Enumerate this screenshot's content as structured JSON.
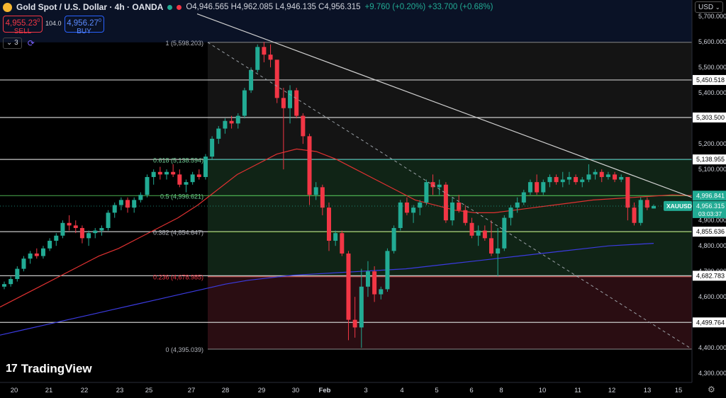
{
  "header": {
    "title": "Gold Spot / U.S. Dollar · 4h · OANDA",
    "ohlc_text": "O4,946.565 H4,962.085 L4,946.135 C4,956.315",
    "change_text": "+9.760 (+0.20%) +33.700 (+0.68%)"
  },
  "trade": {
    "sell_price": "4,955.23",
    "sell_sup": "0",
    "sell_label": "SELL",
    "spread": "104.0",
    "buy_price": "4,956.27",
    "buy_sup": "0",
    "buy_label": "BUY"
  },
  "indicators": {
    "count": "3"
  },
  "currency": "USD",
  "branding": "TradingView",
  "colors": {
    "up": "#22ab94",
    "down": "#f23645",
    "ema_fast": "#e03131",
    "ema_slow": "#3b3be0",
    "fib_top_band": "#141414",
    "fib_mid_band": "#102416",
    "fib_low_band": "#2a0d12",
    "sky": "#0a1226"
  },
  "chart_data": {
    "type": "candlestick",
    "symbol": "XAUUSD",
    "timeframe": "4h",
    "ylim": [
      4270,
      5760
    ],
    "y_ticks": [
      4300,
      4400,
      4500,
      4600,
      4700,
      4800,
      4900,
      5000,
      5100,
      5200,
      5300,
      5400,
      5500,
      5600,
      5700
    ],
    "y_tick_labels": [
      "4,300.000",
      "4,400.000",
      "",
      "4,600.000",
      "4,700.000",
      "4,800.000",
      "4,900.000",
      "",
      "5,100.000",
      "5,200.000",
      "",
      "5,400.000",
      "5,500.000",
      "5,600.000",
      "5,700.000"
    ],
    "x_labels": [
      "20",
      "21",
      "22",
      "23",
      "25",
      "27",
      "28",
      "29",
      "30",
      "Feb",
      "3",
      "4",
      "5",
      "6",
      "8",
      "10",
      "11",
      "12",
      "13",
      "15"
    ],
    "price_labels": [
      {
        "value": 5450.518,
        "text": "5,450.518"
      },
      {
        "value": 5303.5,
        "text": "5,303.500"
      },
      {
        "value": 5138.955,
        "text": "5,138.955"
      },
      {
        "value": 4996.841,
        "text": "4,996.841"
      },
      {
        "value": 4855.636,
        "text": "4,855.636"
      },
      {
        "value": 4682.783,
        "text": "4,682.783"
      },
      {
        "value": 4499.764,
        "text": "4,499.764"
      }
    ],
    "last_price": {
      "symbol": "XAUUSD",
      "text": "4,956.315",
      "countdown": "03:03:37",
      "value": 4956.315
    },
    "fib_levels": [
      {
        "ratio": "1",
        "value": 5598.203,
        "text": "1 (5,598.203)"
      },
      {
        "ratio": "0.618",
        "value": 5138.594,
        "text": "0.618 (5,138.594)"
      },
      {
        "ratio": "0.5",
        "value": 4996.621,
        "text": "0.5 (4,996.621)"
      },
      {
        "ratio": "0.382",
        "value": 4854.647,
        "text": "0.382 (4,854.647)"
      },
      {
        "ratio": "0.236",
        "value": 4678.985,
        "text": "0.236 (4,678.985)"
      },
      {
        "ratio": "0",
        "value": 4395.039,
        "text": "0 (4,395.039)"
      }
    ],
    "candles": [
      [
        4640,
        4660,
        4630,
        4650
      ],
      [
        4650,
        4680,
        4640,
        4670
      ],
      [
        4670,
        4720,
        4660,
        4710
      ],
      [
        4710,
        4760,
        4700,
        4750
      ],
      [
        4750,
        4780,
        4730,
        4770
      ],
      [
        4770,
        4790,
        4750,
        4760
      ],
      [
        4760,
        4800,
        4750,
        4790
      ],
      [
        4790,
        4830,
        4780,
        4820
      ],
      [
        4820,
        4850,
        4800,
        4840
      ],
      [
        4840,
        4900,
        4830,
        4890
      ],
      [
        4890,
        4920,
        4860,
        4880
      ],
      [
        4880,
        4900,
        4850,
        4870
      ],
      [
        4870,
        4880,
        4810,
        4830
      ],
      [
        4830,
        4860,
        4800,
        4850
      ],
      [
        4850,
        4870,
        4830,
        4860
      ],
      [
        4860,
        4880,
        4840,
        4870
      ],
      [
        4870,
        4940,
        4860,
        4930
      ],
      [
        4930,
        4970,
        4910,
        4960
      ],
      [
        4960,
        4990,
        4940,
        4980
      ],
      [
        4980,
        4990,
        4930,
        4950
      ],
      [
        4950,
        4990,
        4930,
        4980
      ],
      [
        4980,
        5010,
        4970,
        5000
      ],
      [
        5000,
        5080,
        4990,
        5070
      ],
      [
        5070,
        5100,
        5040,
        5090
      ],
      [
        5090,
        5110,
        5060,
        5080
      ],
      [
        5080,
        5100,
        5060,
        5090
      ],
      [
        5090,
        5120,
        5070,
        5080
      ],
      [
        5080,
        5100,
        5030,
        5040
      ],
      [
        5040,
        5060,
        5010,
        5050
      ],
      [
        5050,
        5090,
        5040,
        5080
      ],
      [
        5080,
        5100,
        5060,
        5070
      ],
      [
        5070,
        5160,
        5060,
        5150
      ],
      [
        5150,
        5230,
        5140,
        5220
      ],
      [
        5220,
        5270,
        5200,
        5260
      ],
      [
        5260,
        5300,
        5240,
        5290
      ],
      [
        5290,
        5310,
        5260,
        5280
      ],
      [
        5280,
        5320,
        5260,
        5310
      ],
      [
        5310,
        5420,
        5300,
        5410
      ],
      [
        5410,
        5500,
        5400,
        5490
      ],
      [
        5490,
        5590,
        5480,
        5580
      ],
      [
        5580,
        5600,
        5520,
        5550
      ],
      [
        5550,
        5590,
        5500,
        5530
      ],
      [
        5530,
        5520,
        5360,
        5380
      ],
      [
        5380,
        5420,
        5100,
        5340
      ],
      [
        5340,
        5430,
        5280,
        5410
      ],
      [
        5410,
        5420,
        5300,
        5310
      ],
      [
        5310,
        5320,
        5200,
        5230
      ],
      [
        5230,
        5240,
        4960,
        5000
      ],
      [
        5000,
        5050,
        4980,
        5030
      ],
      [
        5030,
        5040,
        4920,
        4950
      ],
      [
        4950,
        4970,
        4780,
        4820
      ],
      [
        4820,
        4860,
        4800,
        4850
      ],
      [
        4850,
        4860,
        4760,
        4770
      ],
      [
        4770,
        4780,
        4430,
        4510
      ],
      [
        4510,
        4600,
        4440,
        4480
      ],
      [
        4480,
        4710,
        4400,
        4640
      ],
      [
        4640,
        4740,
        4600,
        4700
      ],
      [
        4700,
        4720,
        4580,
        4610
      ],
      [
        4610,
        4640,
        4590,
        4630
      ],
      [
        4630,
        4790,
        4620,
        4780
      ],
      [
        4780,
        4880,
        4770,
        4870
      ],
      [
        4870,
        4980,
        4860,
        4970
      ],
      [
        4970,
        4990,
        4920,
        4930
      ],
      [
        4930,
        4960,
        4890,
        4950
      ],
      [
        4950,
        4980,
        4920,
        4970
      ],
      [
        4970,
        5060,
        4960,
        5050
      ],
      [
        5050,
        5080,
        5000,
        5030
      ],
      [
        5030,
        5060,
        5000,
        5040
      ],
      [
        5040,
        5050,
        4890,
        4900
      ],
      [
        4900,
        4990,
        4880,
        4970
      ],
      [
        4970,
        5000,
        4930,
        4940
      ],
      [
        4940,
        4960,
        4880,
        4890
      ],
      [
        4890,
        4910,
        4830,
        4840
      ],
      [
        4840,
        4880,
        4800,
        4860
      ],
      [
        4860,
        4880,
        4820,
        4830
      ],
      [
        4830,
        4900,
        4760,
        4770
      ],
      [
        4770,
        4870,
        4680,
        4790
      ],
      [
        4790,
        4920,
        4780,
        4910
      ],
      [
        4910,
        4960,
        4880,
        4950
      ],
      [
        4950,
        4990,
        4930,
        4970
      ],
      [
        4970,
        5020,
        4960,
        5010
      ],
      [
        5010,
        5060,
        5000,
        5050
      ],
      [
        5050,
        5080,
        5000,
        5010
      ],
      [
        5010,
        5060,
        5000,
        5050
      ],
      [
        5050,
        5080,
        5030,
        5070
      ],
      [
        5070,
        5080,
        5040,
        5050
      ],
      [
        5050,
        5090,
        5030,
        5060
      ],
      [
        5060,
        5090,
        5040,
        5070
      ],
      [
        5070,
        5080,
        5040,
        5050
      ],
      [
        5050,
        5070,
        5030,
        5060
      ],
      [
        5060,
        5120,
        5050,
        5080
      ],
      [
        5080,
        5100,
        5060,
        5090
      ],
      [
        5090,
        5100,
        5050,
        5070
      ],
      [
        5070,
        5090,
        5060,
        5080
      ],
      [
        5080,
        5090,
        5050,
        5060
      ],
      [
        5060,
        5080,
        5050,
        5070
      ],
      [
        5070,
        5060,
        4900,
        4950
      ],
      [
        4950,
        4970,
        4880,
        4890
      ],
      [
        4890,
        4990,
        4880,
        4980
      ],
      [
        4980,
        4990,
        4940,
        4950
      ],
      [
        4946.565,
        4962.085,
        4946.135,
        4956.315
      ]
    ],
    "ema_fast": [
      4560,
      4600,
      4640,
      4680,
      4720,
      4760,
      4790,
      4830,
      4870,
      4910,
      4960,
      5020,
      5080,
      5120,
      5160,
      5180,
      5170,
      5140,
      5100,
      5060,
      5020,
      4980,
      4960,
      4940,
      4930,
      4930,
      4940,
      4950,
      4960,
      4970,
      4980,
      4985,
      4990,
      4995,
      5000,
      4997
    ],
    "ema_slow": [
      4450,
      4470,
      4490,
      4510,
      4530,
      4550,
      4570,
      4590,
      4610,
      4630,
      4650,
      4665,
      4675,
      4685,
      4690,
      4695,
      4700,
      4705,
      4710,
      4720,
      4730,
      4740,
      4750,
      4760,
      4770,
      4780,
      4790,
      4800,
      4805,
      4810
    ],
    "trendline": {
      "from": [
        4375,
        5710
      ],
      "to": [
        4720,
        5010
      ]
    },
    "dashed_line": {
      "from": [
        4380,
        5598
      ],
      "to": [
        4990,
        4395
      ]
    }
  }
}
